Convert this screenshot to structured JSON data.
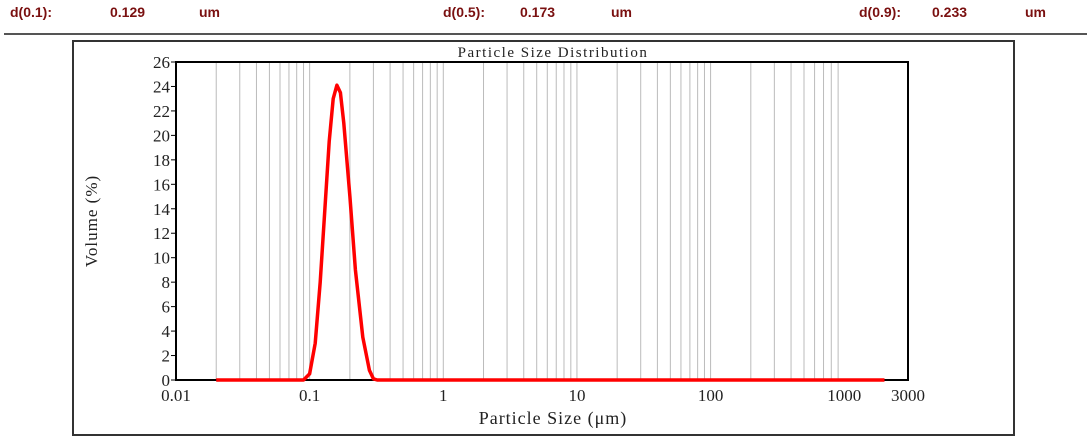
{
  "header": {
    "items": [
      {
        "label": "d(0.1):",
        "value": "0.129",
        "unit": "um"
      },
      {
        "label": "d(0.5):",
        "value": "0.173",
        "unit": "um"
      },
      {
        "label": "d(0.9):",
        "value": "0.233",
        "unit": "um"
      }
    ]
  },
  "chart_data": {
    "type": "line",
    "title": "Particle Size Distribution",
    "xlabel": "Particle Size (μm)",
    "ylabel": "Volume (%)",
    "xscale": "log",
    "xlim": [
      0.01,
      3000
    ],
    "ylim": [
      0,
      26
    ],
    "xticks": [
      "0.01",
      "0.1",
      "1",
      "10",
      "100",
      "1000",
      "3000"
    ],
    "yticks": [
      "0",
      "2",
      "4",
      "6",
      "8",
      "10",
      "12",
      "14",
      "16",
      "18",
      "20",
      "22",
      "24",
      "26"
    ],
    "grid": "vertical minor log lines",
    "line_color": "#ff0000",
    "x": [
      0.02,
      0.09,
      0.1,
      0.11,
      0.12,
      0.13,
      0.14,
      0.15,
      0.16,
      0.17,
      0.18,
      0.2,
      0.22,
      0.25,
      0.28,
      0.3,
      0.32,
      2000
    ],
    "values": [
      0,
      0,
      0.5,
      3,
      8,
      14,
      19.5,
      23,
      24.1,
      23.5,
      21,
      15,
      9,
      3.5,
      0.8,
      0.1,
      0,
      0
    ]
  }
}
